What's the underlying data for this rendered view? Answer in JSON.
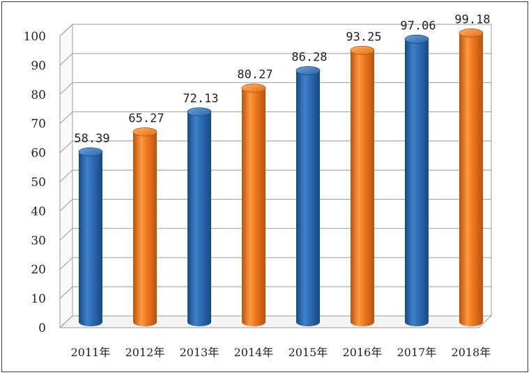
{
  "chart_data": {
    "type": "bar",
    "categories": [
      "2011年",
      "2012年",
      "2013年",
      "2014年",
      "2015年",
      "2016年",
      "2017年",
      "2018年"
    ],
    "values": [
      58.39,
      65.27,
      72.13,
      80.27,
      86.28,
      93.25,
      97.06,
      99.18
    ],
    "data_labels": [
      "58.39",
      "65.27",
      "72.13",
      "80.27",
      "86.28",
      "93.25",
      "97.06",
      "99.18"
    ],
    "ylim": [
      0,
      100
    ],
    "yticks": [
      0,
      10,
      20,
      30,
      40,
      50,
      60,
      70,
      80,
      90,
      100
    ],
    "grid": true,
    "style": "3d-cylinder",
    "bar_colors": [
      "#2e6eb5",
      "#f07a1f"
    ],
    "colors": {
      "blue_dark": "#174a86",
      "blue_mid": "#2e6eb5",
      "blue_light": "#6ea3df",
      "orange_dark": "#b7530d",
      "orange_mid": "#f07a1f",
      "orange_light": "#ffb26a",
      "grid": "#9a9a9a",
      "wall": "#ffffff"
    }
  }
}
